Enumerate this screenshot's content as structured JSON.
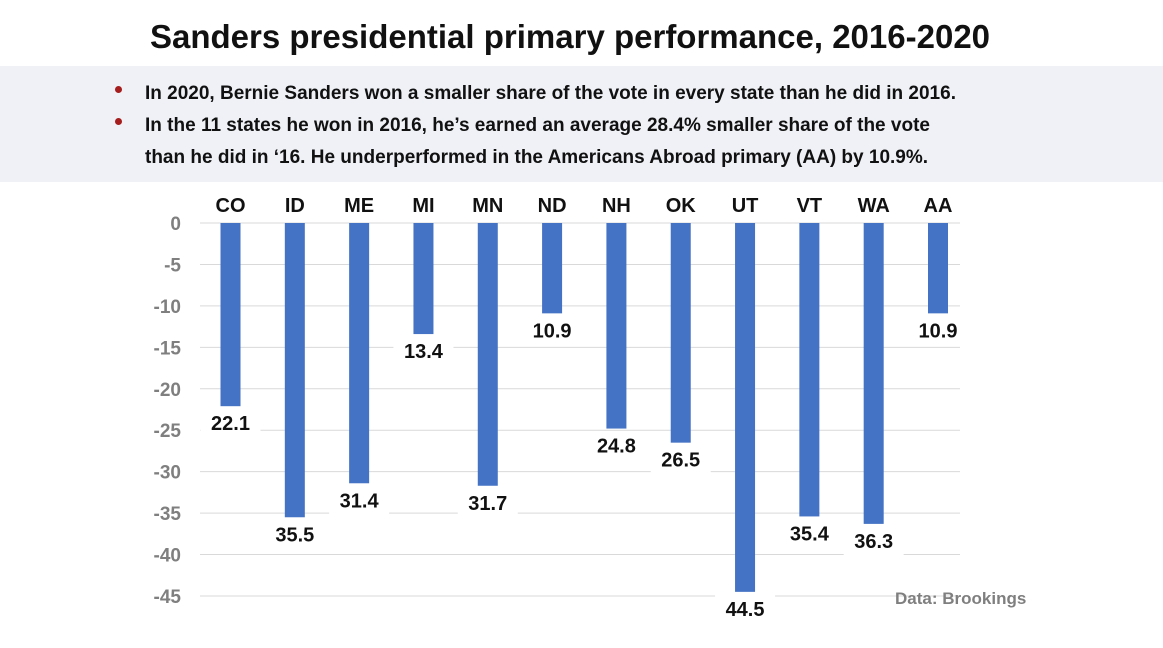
{
  "title": "Sanders presidential primary performance, 2016-2020",
  "bullets": [
    {
      "lines": [
        "In 2020, Bernie Sanders won a smaller share of the vote in every state than he did in 2016."
      ]
    },
    {
      "lines": [
        "In the 11 states he won in 2016, he’s earned an average 28.4% smaller share of the vote",
        "than he did in ‘16. He underperformed in the Americans Abroad primary (AA) by 10.9%."
      ]
    }
  ],
  "source": "Data: Brookings",
  "colors": {
    "bar": "#4472c4",
    "bullet": "#a51d1d",
    "grid": "#d9d9d9",
    "tick": "#7f7f7f",
    "banner": "#eff1f6"
  },
  "chart_data": {
    "type": "bar",
    "title": "Sanders presidential primary performance, 2016-2020",
    "categories": [
      "CO",
      "ID",
      "ME",
      "MI",
      "MN",
      "ND",
      "NH",
      "OK",
      "UT",
      "VT",
      "WA",
      "AA"
    ],
    "values": [
      -22.1,
      -35.5,
      -31.4,
      -13.4,
      -31.7,
      -10.9,
      -24.8,
      -26.5,
      -44.5,
      -35.4,
      -36.3,
      -10.9
    ],
    "data_labels": [
      "22.1",
      "35.5",
      "31.4",
      "13.4",
      "31.7",
      "10.9",
      "24.8",
      "26.5",
      "44.5",
      "35.4",
      "36.3",
      "10.9"
    ],
    "y_ticks": [
      0,
      -5,
      -10,
      -15,
      -20,
      -25,
      -30,
      -35,
      -40,
      -45
    ],
    "ylim": [
      -45,
      0
    ],
    "xlabel": "",
    "ylabel": "",
    "grid": true,
    "category_labels_position": "top"
  }
}
